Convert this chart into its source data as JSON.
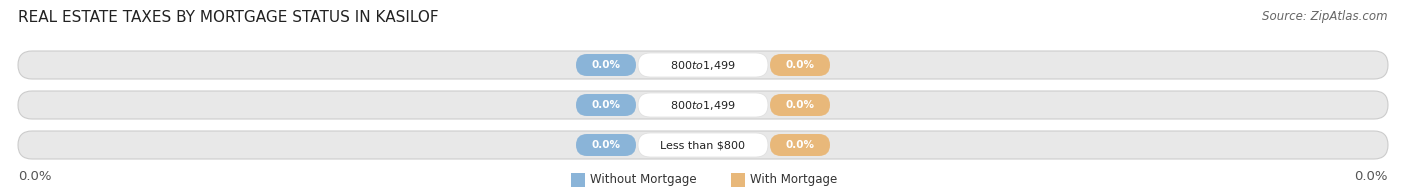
{
  "title": "REAL ESTATE TAXES BY MORTGAGE STATUS IN KASILOF",
  "source_text": "Source: ZipAtlas.com",
  "categories": [
    "Less than $800",
    "$800 to $1,499",
    "$800 to $1,499"
  ],
  "without_mortgage": [
    0.0,
    0.0,
    0.0
  ],
  "with_mortgage": [
    0.0,
    0.0,
    0.0
  ],
  "without_mortgage_color": "#8ab4d8",
  "with_mortgage_color": "#e8b87a",
  "bar_bg_color": "#e8e8e8",
  "bar_gap_color": "#f5f5f5",
  "legend_without": "Without Mortgage",
  "legend_with": "With Mortgage",
  "left_label": "0.0%",
  "right_label": "0.0%",
  "title_fontsize": 11,
  "source_fontsize": 8.5,
  "tick_fontsize": 9.5
}
